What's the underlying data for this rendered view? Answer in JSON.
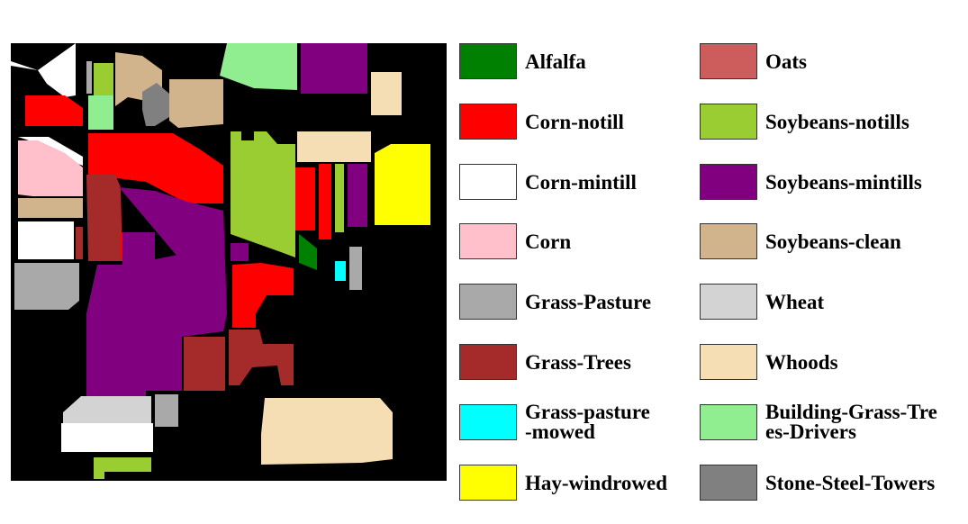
{
  "legend": {
    "items": [
      {
        "key": "alfalfa",
        "label": "Alfalfa",
        "color": "#008000"
      },
      {
        "key": "corn_notill",
        "label": "Corn-notill",
        "color": "#ff0000"
      },
      {
        "key": "corn_mintill",
        "label": "Corn-mintill",
        "color": "#ffffff"
      },
      {
        "key": "corn",
        "label": "Corn",
        "color": "#ffc0cb"
      },
      {
        "key": "grass_pasture",
        "label": "Grass-Pasture",
        "color": "#a9a9a9"
      },
      {
        "key": "grass_trees",
        "label": "Grass-Trees",
        "color": "#a52a2a"
      },
      {
        "key": "grass_pasture_mowed",
        "label": "Grass-pasture\n-mowed",
        "color": "#00ffff"
      },
      {
        "key": "hay_windrowed",
        "label": "Hay-windrowed",
        "color": "#ffff00"
      },
      {
        "key": "oats",
        "label": "Oats",
        "color": "#cd5c5c"
      },
      {
        "key": "soybeans_notills",
        "label": "Soybeans-notills",
        "color": "#9acd32"
      },
      {
        "key": "soybeans_mintills",
        "label": "Soybeans-mintills",
        "color": "#800080"
      },
      {
        "key": "soybeans_clean",
        "label": "Soybeans-clean",
        "color": "#d2b48c"
      },
      {
        "key": "wheat",
        "label": "Wheat",
        "color": "#d3d3d3"
      },
      {
        "key": "whoods",
        "label": "Whoods",
        "color": "#f5deb3"
      },
      {
        "key": "building_grass_trees_drivers",
        "label": "Building-Grass-Tre\nes-Drivers",
        "color": "#90ee90"
      },
      {
        "key": "stone_steel_towers",
        "label": "Stone-Steel-Towers",
        "color": "#808080"
      }
    ]
  },
  "map": {
    "background_color": "#000000"
  }
}
